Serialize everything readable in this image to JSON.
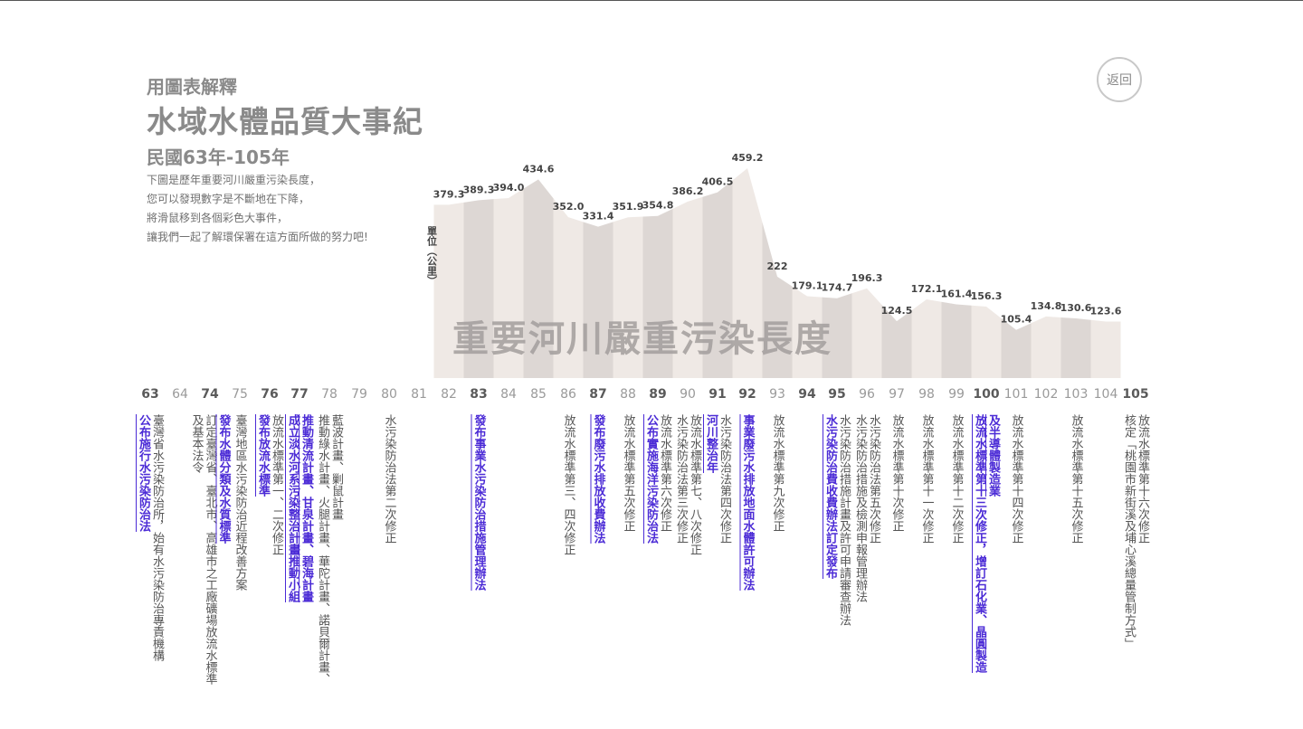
{
  "header": {
    "subtitle": "用圖表解釋",
    "title": "水域水體品質大事紀",
    "period": "民國63年-105年",
    "description": [
      "下圖是歷年重要河川嚴重污染長度，",
      "您可以發現數字是不斷地在下降，",
      "將滑鼠移到各個彩色大事件，",
      "讓我們一起了解環保署在這方面所做的努力吧!"
    ],
    "back_label": "返回"
  },
  "colors": {
    "bar_light": "#efe9e5",
    "bar_dark": "#ddd7d4",
    "watermark": "#a29d9c",
    "highlight": "#4b2bd6",
    "text": "#555555",
    "year_major": "#5a5a5a",
    "year_minor": "#9a9a9a"
  },
  "chart_data": {
    "type": "area",
    "title": "重要河川嚴重污染長度",
    "ylabel": "單位（公里）",
    "xlabel": "",
    "x": [
      82,
      83,
      84,
      85,
      86,
      87,
      88,
      89,
      90,
      91,
      92,
      93,
      94,
      95,
      96,
      97,
      98,
      99,
      100,
      101,
      102,
      103,
      104
    ],
    "values": [
      379.3,
      389.3,
      394.0,
      434.6,
      352.0,
      331.4,
      351.9,
      354.8,
      386.2,
      406.5,
      459.2,
      222,
      179.1,
      174.7,
      196.3,
      124.5,
      172.1,
      161.4,
      156.3,
      105.4,
      134.8,
      130.6,
      123.6
    ],
    "value_labels": [
      "379.3",
      "389.3",
      "394.0",
      "434.6",
      "352.0",
      "331.4",
      "351.9",
      "354.8",
      "386.2",
      "406.5",
      "459.2",
      "222",
      "179.1",
      "174.7",
      "196.3",
      "124.5",
      "172.1",
      "161.4",
      "156.3",
      "105.4",
      "134.8",
      "130.6",
      "123.6"
    ],
    "ylim": [
      0,
      470
    ],
    "grid": false,
    "x_axis_years": [
      "63",
      "64",
      "74",
      "75",
      "76",
      "77",
      "78",
      "79",
      "80",
      "81",
      "82",
      "83",
      "84",
      "85",
      "86",
      "87",
      "88",
      "89",
      "90",
      "91",
      "92",
      "93",
      "94",
      "95",
      "96",
      "97",
      "98",
      "99",
      "100",
      "101",
      "102",
      "103",
      "104",
      "105"
    ],
    "major_years": [
      "63",
      "74",
      "76",
      "77",
      "83",
      "87",
      "89",
      "91",
      "92",
      "94",
      "95",
      "100",
      "105"
    ]
  },
  "events": [
    {
      "year": "63",
      "text": "公布施行水污染防治法",
      "highlight": true
    },
    {
      "year": "63",
      "text": "臺灣省水污染防治所，始有水污染防治專責機構",
      "highlight": false
    },
    {
      "year": "74",
      "text": "及基本法令",
      "highlight": false
    },
    {
      "year": "74",
      "text": "訂定臺灣省、臺北市、高雄市之工廠礦場放流水標準",
      "highlight": false
    },
    {
      "year": "74",
      "text": "發布水體分類及水質標準",
      "highlight": true
    },
    {
      "year": "75",
      "text": "臺灣地區水污染防治近程改善方案",
      "highlight": false
    },
    {
      "year": "76",
      "text": "發布放流水標準",
      "highlight": true
    },
    {
      "year": "76",
      "text": "放流水標準第一、二次修正",
      "highlight": false
    },
    {
      "year": "77",
      "text": "成立淡水河系污染整治計畫推動小組",
      "highlight": true
    },
    {
      "year": "77",
      "text": "推動清流計畫、甘泉計畫、碧海計畫",
      "highlight": true
    },
    {
      "year": "78",
      "text": "推動綠水計畫、火腿計畫、華陀計畫、諾貝爾計畫、",
      "highlight": false
    },
    {
      "year": "78",
      "text": "藍波計畫、剿鼠計畫",
      "highlight": false
    },
    {
      "year": "80",
      "text": "水污染防治法第二次修正",
      "highlight": false
    },
    {
      "year": "83",
      "text": "發布事業水污染防治措施管理辦法",
      "highlight": true
    },
    {
      "year": "86",
      "text": "放流水標準第三、四次修正",
      "highlight": false
    },
    {
      "year": "87",
      "text": "發布廢污水排放收費辦法",
      "highlight": true
    },
    {
      "year": "88",
      "text": "放流水標準第五次修正",
      "highlight": false
    },
    {
      "year": "89",
      "text": "公布實施海洋污染防治法",
      "highlight": true
    },
    {
      "year": "89",
      "text": "放流水標準第六次修正",
      "highlight": false
    },
    {
      "year": "90",
      "text": "水污染防治法第三次修正",
      "highlight": false
    },
    {
      "year": "90",
      "text": "放流水標準第七、八次修正",
      "highlight": false
    },
    {
      "year": "91",
      "text": "河川整治年",
      "highlight": true
    },
    {
      "year": "91",
      "text": "水污染防治法第四次修正",
      "highlight": false
    },
    {
      "year": "92",
      "text": "事業廢污水排放地面水體許可辦法",
      "highlight": true
    },
    {
      "year": "93",
      "text": "放流水標準第九次修正",
      "highlight": false
    },
    {
      "year": "95",
      "text": "水污染防治費收費辦法訂定發布",
      "highlight": true
    },
    {
      "year": "95",
      "text": "水污染防治措施計畫及許可申請審查辦法",
      "highlight": false
    },
    {
      "year": "96",
      "text": "水污染防治措施及檢測申報管理辦法",
      "highlight": false
    },
    {
      "year": "96",
      "text": "水污染防治法第五次修正",
      "highlight": false
    },
    {
      "year": "97",
      "text": "放流水標準第十次修正",
      "highlight": false
    },
    {
      "year": "98",
      "text": "放流水標準第十一次修正",
      "highlight": false
    },
    {
      "year": "99",
      "text": "放流水標準第十二次修正",
      "highlight": false
    },
    {
      "year": "100",
      "text": "放流水標準第十三次修正，增訂石化業、晶圓製造",
      "highlight": true
    },
    {
      "year": "100",
      "text": "及半導體製造業",
      "highlight": true
    },
    {
      "year": "101",
      "text": "放流水標準第十四次修正",
      "highlight": false
    },
    {
      "year": "103",
      "text": "放流水標準第十五次修正",
      "highlight": false
    },
    {
      "year": "105",
      "text": "核定「桃園市新街溪及埔心溪總量管制方式」",
      "highlight": false
    },
    {
      "year": "105",
      "text": "放流水標準第十六次修正",
      "highlight": false
    }
  ]
}
